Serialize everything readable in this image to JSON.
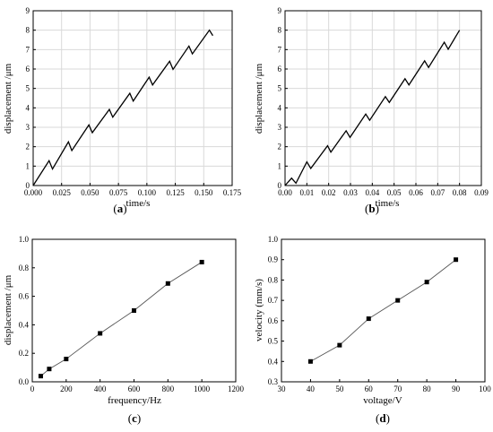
{
  "chart_data": [
    {
      "type": "line",
      "panel": "(a)",
      "xlabel": "time/s",
      "ylabel": "displacement /μm",
      "xlim": [
        0,
        0.175
      ],
      "ylim": [
        0,
        9
      ],
      "xticks": [
        "0.000",
        "0.025",
        "0.050",
        "0.075",
        "0.100",
        "0.125",
        "0.150",
        "0.175"
      ],
      "yticks": [
        "0",
        "1",
        "2",
        "3",
        "4",
        "5",
        "6",
        "7",
        "8",
        "9"
      ],
      "grid": true,
      "x": [
        0,
        0.014,
        0.017,
        0.031,
        0.034,
        0.049,
        0.052,
        0.067,
        0.07,
        0.085,
        0.088,
        0.102,
        0.105,
        0.12,
        0.123,
        0.137,
        0.14,
        0.155,
        0.158
      ],
      "y": [
        0,
        1.28,
        0.85,
        2.25,
        1.8,
        3.12,
        2.72,
        3.92,
        3.52,
        4.75,
        4.35,
        5.58,
        5.18,
        6.4,
        5.98,
        7.18,
        6.78,
        8.0,
        7.72
      ]
    },
    {
      "type": "line",
      "panel": "(b)",
      "xlabel": "time/s",
      "ylabel": "displacement /μm",
      "xlim": [
        0,
        0.09
      ],
      "ylim": [
        0,
        9
      ],
      "xticks": [
        "0.00",
        "0.01",
        "0.02",
        "0.03",
        "0.04",
        "0.05",
        "0.06",
        "0.07",
        "0.08",
        "0.09"
      ],
      "yticks": [
        "0",
        "1",
        "2",
        "3",
        "4",
        "5",
        "6",
        "7",
        "8",
        "9"
      ],
      "grid": true,
      "x": [
        0,
        0.003,
        0.005,
        0.01,
        0.0118,
        0.0195,
        0.021,
        0.028,
        0.0298,
        0.037,
        0.0388,
        0.046,
        0.0478,
        0.055,
        0.0568,
        0.064,
        0.0658,
        0.073,
        0.0748,
        0.08
      ],
      "y": [
        0,
        0.38,
        0.12,
        1.22,
        0.88,
        2.05,
        1.72,
        2.82,
        2.48,
        3.68,
        3.36,
        4.58,
        4.28,
        5.5,
        5.18,
        6.42,
        6.08,
        7.38,
        7.02,
        8.0
      ]
    },
    {
      "type": "line",
      "panel": "(c)",
      "xlabel": "frequency/Hz",
      "ylabel": "displacement /μm",
      "xlim": [
        0,
        1200
      ],
      "ylim": [
        0,
        1.0
      ],
      "xticks": [
        "0",
        "200",
        "400",
        "600",
        "800",
        "1000",
        "1200"
      ],
      "yticks": [
        "0.0",
        "0.2",
        "0.4",
        "0.6",
        "0.8",
        "1.0"
      ],
      "grid": false,
      "x": [
        50,
        100,
        200,
        400,
        600,
        800,
        1000
      ],
      "y": [
        0.04,
        0.09,
        0.16,
        0.34,
        0.5,
        0.69,
        0.84
      ]
    },
    {
      "type": "line",
      "panel": "(d)",
      "xlabel": "voltage/V",
      "ylabel": "velocity (mm/s)",
      "xlim": [
        30,
        100
      ],
      "ylim": [
        0.3,
        1.0
      ],
      "xticks": [
        "30",
        "40",
        "50",
        "60",
        "70",
        "80",
        "90",
        "100"
      ],
      "yticks": [
        "0.3",
        "0.4",
        "0.5",
        "0.6",
        "0.7",
        "0.8",
        "0.9",
        "1.0"
      ],
      "grid": false,
      "x": [
        40,
        50,
        60,
        70,
        80,
        90
      ],
      "y": [
        0.4,
        0.48,
        0.61,
        0.7,
        0.79,
        0.9
      ]
    }
  ]
}
